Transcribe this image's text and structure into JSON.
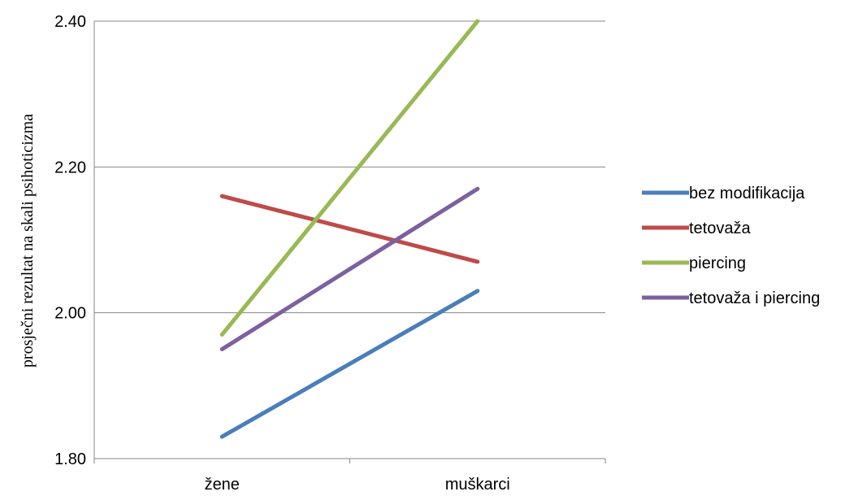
{
  "chart_data": {
    "type": "line",
    "title": "",
    "xlabel": "",
    "ylabel": "prosječni rezultat na skali psihoticizma",
    "categories": [
      "žene",
      "muškarci"
    ],
    "ylim": [
      1.8,
      2.4
    ],
    "yticks": [
      "1.80",
      "2.00",
      "2.20",
      "2.40"
    ],
    "grid": true,
    "legend_position": "right",
    "series": [
      {
        "name": "bez modifikacija",
        "color": "#4a7ebb",
        "values": [
          1.83,
          2.03
        ]
      },
      {
        "name": "tetovaža",
        "color": "#be4b48",
        "values": [
          2.16,
          2.07
        ]
      },
      {
        "name": "piercing",
        "color": "#98b954",
        "values": [
          1.97,
          2.4
        ]
      },
      {
        "name": "tetovaža i piercing",
        "color": "#7d60a0",
        "values": [
          1.95,
          2.17
        ]
      }
    ]
  }
}
